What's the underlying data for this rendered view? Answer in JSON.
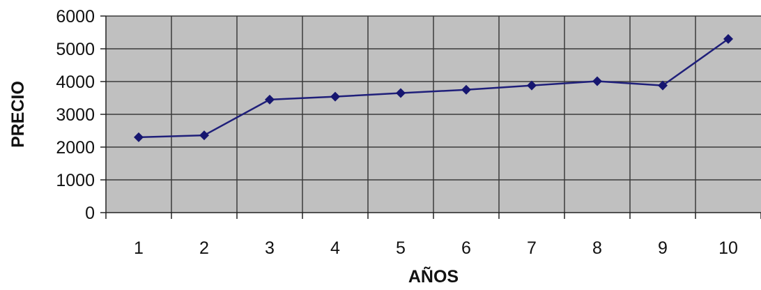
{
  "chart_data": {
    "type": "line",
    "title": "",
    "xlabel": "AÑOS",
    "ylabel": "PRECIO",
    "categories": [
      "1",
      "2",
      "3",
      "4",
      "5",
      "6",
      "7",
      "8",
      "9",
      "10"
    ],
    "series": [
      {
        "values": [
          2300,
          2360,
          3450,
          3540,
          3650,
          3750,
          3880,
          4010,
          3880,
          5300
        ]
      }
    ],
    "ylim": [
      0,
      6000
    ],
    "yticks": [
      0,
      1000,
      2000,
      3000,
      4000,
      5000,
      6000
    ],
    "grid": true,
    "legend": "none",
    "colors": {
      "plot_background": "#c0c0c0",
      "grid": "#3a3a3a",
      "line": "#1f1f7a",
      "marker": "#161670"
    }
  }
}
